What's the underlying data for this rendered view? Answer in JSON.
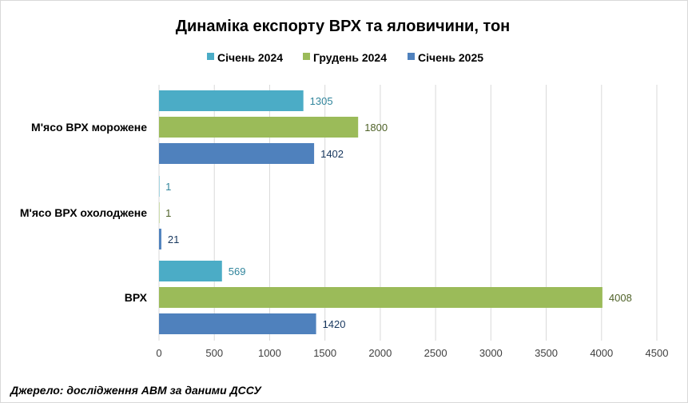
{
  "chart_data": {
    "type": "bar",
    "orientation": "horizontal",
    "title": "Динаміка експорту ВРХ та яловичини, тон",
    "categories": [
      "М'ясо ВРХ морожене",
      "М'ясо ВРХ охолоджене",
      "ВРХ"
    ],
    "series": [
      {
        "name": "Січень 2024",
        "color": "#4BACC6",
        "label_color": "#31859C",
        "values": [
          1305,
          1,
          569
        ]
      },
      {
        "name": "Грудень 2024",
        "color": "#9BBB59",
        "label_color": "#4F6228",
        "values": [
          1800,
          1,
          4008
        ]
      },
      {
        "name": "Січень 2025",
        "color": "#4F81BD",
        "label_color": "#17375E",
        "values": [
          1402,
          21,
          1420
        ]
      }
    ],
    "xlim": [
      0,
      4500
    ],
    "xticks": [
      0,
      500,
      1000,
      1500,
      2000,
      2500,
      3000,
      3500,
      4000,
      4500
    ],
    "grid": true,
    "legend": "top-center",
    "xlabel": "",
    "ylabel": ""
  },
  "source": "Джерело: дослідження АВМ за даними ДССУ"
}
